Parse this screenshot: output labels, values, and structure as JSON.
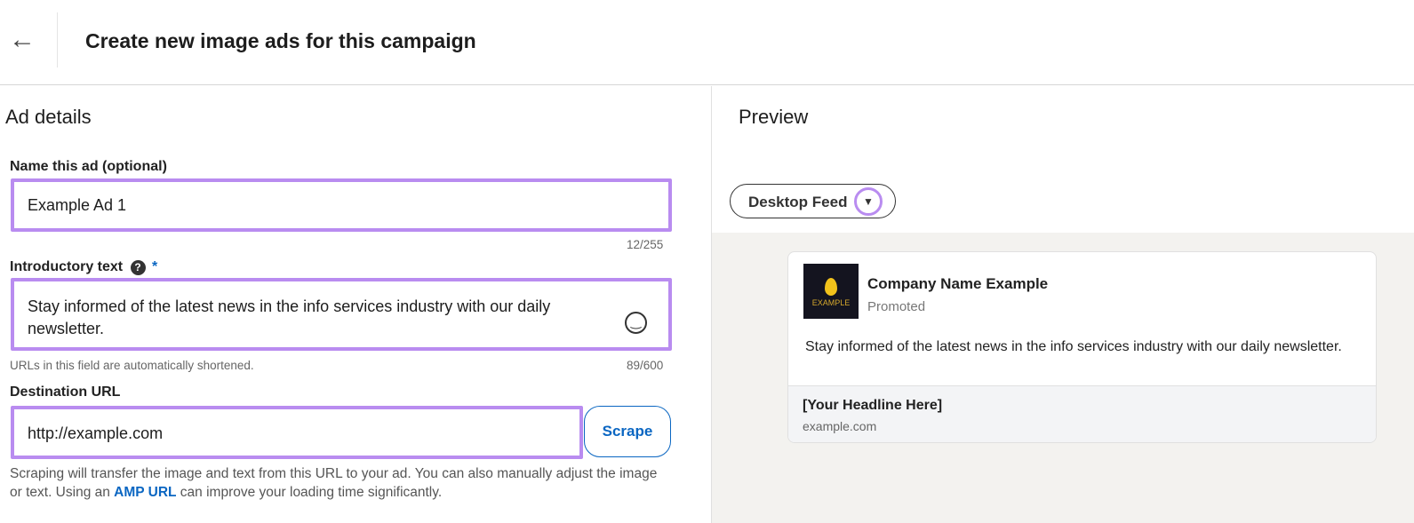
{
  "header": {
    "back_icon": "arrow-left-icon",
    "title": "Create new image ads for this campaign"
  },
  "ad_details": {
    "heading": "Ad details",
    "name_label": "Name this ad (optional)",
    "name_value": "Example Ad 1",
    "name_count": "12/255",
    "intro_label": "Introductory text",
    "intro_required": "*",
    "intro_value": "Stay informed of the latest news in the info services industry with our daily newsletter.",
    "intro_hint": "URLs in this field are automatically shortened.",
    "intro_count": "89/600",
    "url_label": "Destination URL",
    "url_value": "http://example.com",
    "scrape_label": "Scrape",
    "scrape_help_1": "Scraping will transfer the image and text from this URL to your ad. You can also manually adjust the image or text. Using an ",
    "amp_link": "AMP URL",
    "scrape_help_2": " can improve your loading time significantly."
  },
  "preview": {
    "heading": "Preview",
    "feed_select": "Desktop Feed",
    "company": "Company Name Example",
    "logo_text": "EXAMPLE",
    "promoted": "Promoted",
    "body": "Stay informed of the latest news in the info services industry with our daily newsletter.",
    "headline": "[Your Headline Here]",
    "domain": "example.com"
  },
  "colors": {
    "highlight": "#b98cf0",
    "link": "#0a66c2"
  }
}
